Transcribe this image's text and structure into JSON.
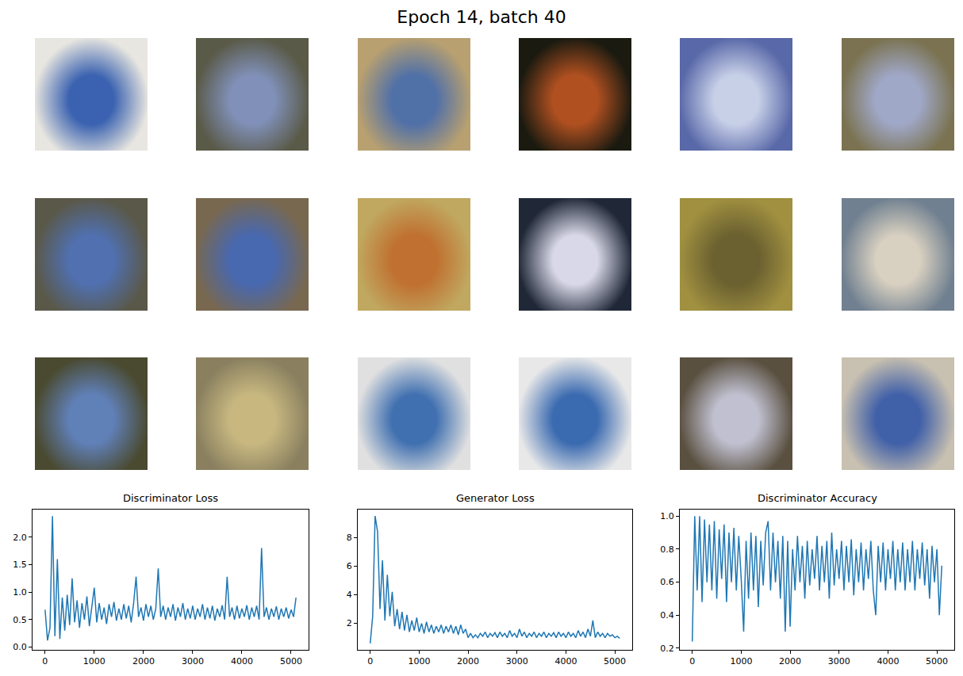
{
  "title": "Epoch 14, batch 40",
  "images": {
    "rows": 3,
    "cols": 6,
    "tiles": [
      {
        "colors": [
          "#e8e6e0",
          "#3a62b0"
        ]
      },
      {
        "colors": [
          "#5a5a48",
          "#8090b8"
        ]
      },
      {
        "colors": [
          "#b8a070",
          "#5070a8"
        ]
      },
      {
        "colors": [
          "#1a1a10",
          "#b05020"
        ]
      },
      {
        "colors": [
          "#5868a8",
          "#c8d0e8"
        ]
      },
      {
        "colors": [
          "#7a7250",
          "#a0a8c8"
        ]
      },
      {
        "colors": [
          "#5a5848",
          "#5070b0"
        ]
      },
      {
        "colors": [
          "#786850",
          "#4868b0"
        ]
      },
      {
        "colors": [
          "#c0a860",
          "#c07030"
        ]
      },
      {
        "colors": [
          "#202838",
          "#d8d8e8"
        ]
      },
      {
        "colors": [
          "#a09040",
          "#6a6030"
        ]
      },
      {
        "colors": [
          "#708090",
          "#d8d0c0"
        ]
      },
      {
        "colors": [
          "#4a4a30",
          "#6080b8"
        ]
      },
      {
        "colors": [
          "#8a8060",
          "#c8b880"
        ]
      },
      {
        "colors": [
          "#e0e0e0",
          "#4070b0"
        ]
      },
      {
        "colors": [
          "#e8e8e8",
          "#3a6ab0"
        ]
      },
      {
        "colors": [
          "#5a5040",
          "#c0c0d0"
        ]
      },
      {
        "colors": [
          "#c8c0b0",
          "#4060a8"
        ]
      }
    ]
  },
  "chart_data": [
    {
      "type": "line",
      "title": "Discriminator Loss",
      "color": "#1f77b4",
      "grid": false,
      "x": [
        0,
        50,
        100,
        150,
        200,
        250,
        300,
        350,
        400,
        450,
        500,
        550,
        600,
        650,
        700,
        750,
        800,
        850,
        900,
        950,
        1000,
        1050,
        1100,
        1150,
        1200,
        1250,
        1300,
        1350,
        1400,
        1450,
        1500,
        1550,
        1600,
        1650,
        1700,
        1750,
        1800,
        1850,
        1900,
        1950,
        2000,
        2050,
        2100,
        2150,
        2200,
        2250,
        2300,
        2350,
        2400,
        2450,
        2500,
        2550,
        2600,
        2650,
        2700,
        2750,
        2800,
        2850,
        2900,
        2950,
        3000,
        3050,
        3100,
        3150,
        3200,
        3250,
        3300,
        3350,
        3400,
        3450,
        3500,
        3550,
        3600,
        3650,
        3700,
        3750,
        3800,
        3850,
        3900,
        3950,
        4000,
        4050,
        4100,
        4150,
        4200,
        4250,
        4300,
        4350,
        4400,
        4450,
        4500,
        4550,
        4600,
        4650,
        4700,
        4750,
        4800,
        4850,
        4900,
        4950,
        5000,
        5050,
        5100
      ],
      "values": [
        0.68,
        0.12,
        0.35,
        2.38,
        0.2,
        1.6,
        0.15,
        0.9,
        0.3,
        0.95,
        0.4,
        1.25,
        0.45,
        0.85,
        0.35,
        0.8,
        0.5,
        0.92,
        0.38,
        0.75,
        1.08,
        0.45,
        0.8,
        0.5,
        0.72,
        0.42,
        0.78,
        0.55,
        0.82,
        0.48,
        0.7,
        0.5,
        0.78,
        0.52,
        0.75,
        0.45,
        0.8,
        1.28,
        0.55,
        0.72,
        0.48,
        0.78,
        0.55,
        0.75,
        0.5,
        0.7,
        1.43,
        0.55,
        0.75,
        0.5,
        0.72,
        0.55,
        0.78,
        0.48,
        0.72,
        0.55,
        0.8,
        0.5,
        0.7,
        0.52,
        0.75,
        0.5,
        0.7,
        0.55,
        0.78,
        0.5,
        0.72,
        0.52,
        0.75,
        0.48,
        0.7,
        0.55,
        0.76,
        0.5,
        1.28,
        0.55,
        0.72,
        0.5,
        0.75,
        0.52,
        0.7,
        0.55,
        0.76,
        0.5,
        0.72,
        0.55,
        0.75,
        0.5,
        1.8,
        0.55,
        0.72,
        0.5,
        0.7,
        0.55,
        0.74,
        0.5,
        0.7,
        0.55,
        0.72,
        0.52,
        0.68,
        0.55,
        0.9
      ],
      "xlim": [
        -255,
        5355
      ],
      "xticks": [
        0,
        1000,
        2000,
        3000,
        4000,
        5000
      ],
      "ylim": [
        -0.05,
        2.5
      ],
      "yticks": [
        {
          "value": 0,
          "label": "0.0"
        },
        0.5,
        {
          "value": 1,
          "label": "1.0"
        },
        1.5,
        {
          "value": 2,
          "label": "2.0"
        }
      ]
    },
    {
      "type": "line",
      "title": "Generator Loss",
      "color": "#1f77b4",
      "grid": false,
      "x": [
        0,
        50,
        100,
        150,
        200,
        250,
        300,
        350,
        400,
        450,
        500,
        550,
        600,
        650,
        700,
        750,
        800,
        850,
        900,
        950,
        1000,
        1050,
        1100,
        1150,
        1200,
        1250,
        1300,
        1350,
        1400,
        1450,
        1500,
        1550,
        1600,
        1650,
        1700,
        1750,
        1800,
        1850,
        1900,
        1950,
        2000,
        2050,
        2100,
        2150,
        2200,
        2250,
        2300,
        2350,
        2400,
        2450,
        2500,
        2550,
        2600,
        2650,
        2700,
        2750,
        2800,
        2850,
        2900,
        2950,
        3000,
        3050,
        3100,
        3150,
        3200,
        3250,
        3300,
        3350,
        3400,
        3450,
        3500,
        3550,
        3600,
        3650,
        3700,
        3750,
        3800,
        3850,
        3900,
        3950,
        4000,
        4050,
        4100,
        4150,
        4200,
        4250,
        4300,
        4350,
        4400,
        4450,
        4500,
        4550,
        4600,
        4650,
        4700,
        4750,
        4800,
        4850,
        4900,
        4950,
        5000,
        5050,
        5100
      ],
      "values": [
        0.6,
        2.5,
        9.5,
        8.4,
        3.0,
        6.4,
        2.2,
        5.4,
        2.5,
        4.2,
        1.8,
        3.0,
        1.6,
        2.8,
        1.5,
        2.6,
        1.4,
        2.2,
        1.5,
        2.4,
        1.4,
        2.0,
        1.3,
        2.1,
        1.4,
        1.9,
        1.3,
        1.8,
        1.4,
        1.9,
        1.3,
        1.8,
        1.4,
        1.9,
        1.3,
        1.8,
        1.2,
        1.9,
        1.3,
        1.6,
        1.0,
        1.3,
        1.0,
        1.2,
        1.0,
        1.3,
        1.1,
        1.4,
        1.0,
        1.3,
        1.1,
        1.35,
        1.0,
        1.4,
        1.1,
        1.3,
        1.0,
        1.5,
        1.1,
        1.3,
        1.0,
        1.6,
        1.1,
        1.4,
        1.0,
        1.3,
        1.1,
        1.4,
        1.0,
        1.3,
        1.1,
        1.4,
        1.0,
        1.3,
        1.1,
        1.35,
        1.0,
        1.4,
        1.1,
        1.3,
        1.0,
        1.4,
        1.1,
        1.3,
        1.0,
        1.5,
        1.1,
        1.4,
        1.0,
        1.6,
        1.1,
        2.2,
        1.0,
        1.4,
        1.1,
        1.3,
        1.0,
        1.3,
        1.1,
        1.2,
        1.0,
        1.1,
        0.95
      ],
      "xlim": [
        -255,
        5355
      ],
      "xticks": [
        0,
        1000,
        2000,
        3000,
        4000,
        5000
      ],
      "ylim": [
        0.15,
        9.95
      ],
      "yticks": [
        2,
        4,
        6,
        8
      ]
    },
    {
      "type": "line",
      "title": "Discriminator Accuracy",
      "color": "#1f77b4",
      "grid": false,
      "x": [
        0,
        50,
        100,
        150,
        200,
        250,
        300,
        350,
        400,
        450,
        500,
        550,
        600,
        650,
        700,
        750,
        800,
        850,
        900,
        950,
        1000,
        1050,
        1100,
        1150,
        1200,
        1250,
        1300,
        1350,
        1400,
        1450,
        1500,
        1550,
        1600,
        1650,
        1700,
        1750,
        1800,
        1850,
        1900,
        1950,
        2000,
        2050,
        2100,
        2150,
        2200,
        2250,
        2300,
        2350,
        2400,
        2450,
        2500,
        2550,
        2600,
        2650,
        2700,
        2750,
        2800,
        2850,
        2900,
        2950,
        3000,
        3050,
        3100,
        3150,
        3200,
        3250,
        3300,
        3350,
        3400,
        3450,
        3500,
        3550,
        3600,
        3650,
        3700,
        3750,
        3800,
        3850,
        3900,
        3950,
        4000,
        4050,
        4100,
        4150,
        4200,
        4250,
        4300,
        4350,
        4400,
        4450,
        4500,
        4550,
        4600,
        4650,
        4700,
        4750,
        4800,
        4850,
        4900,
        4950,
        5000,
        5050,
        5100
      ],
      "values": [
        0.24,
        1.0,
        0.55,
        1.0,
        0.48,
        0.98,
        0.6,
        0.95,
        0.55,
        0.97,
        0.5,
        0.92,
        0.62,
        0.95,
        0.48,
        0.9,
        0.6,
        0.93,
        0.55,
        0.88,
        0.62,
        0.3,
        0.85,
        0.5,
        0.9,
        0.55,
        0.88,
        0.45,
        0.85,
        0.58,
        0.9,
        0.97,
        0.55,
        0.9,
        0.6,
        0.85,
        0.5,
        0.88,
        0.3,
        0.85,
        0.33,
        0.8,
        0.55,
        0.88,
        0.6,
        0.82,
        0.5,
        0.85,
        0.58,
        0.8,
        0.62,
        0.88,
        0.55,
        0.82,
        0.6,
        0.85,
        0.5,
        0.9,
        0.58,
        0.8,
        0.62,
        0.85,
        0.55,
        0.82,
        0.6,
        0.86,
        0.52,
        0.8,
        0.6,
        0.84,
        0.55,
        0.8,
        0.62,
        0.85,
        0.55,
        0.4,
        0.82,
        0.6,
        0.84,
        0.55,
        0.8,
        0.62,
        0.85,
        0.55,
        0.8,
        0.6,
        0.84,
        0.55,
        0.8,
        0.6,
        0.85,
        0.55,
        0.8,
        0.62,
        0.84,
        0.58,
        0.8,
        0.5,
        0.82,
        0.6,
        0.8,
        0.4,
        0.7
      ],
      "xlim": [
        -255,
        5355
      ],
      "xticks": [
        0,
        1000,
        2000,
        3000,
        4000,
        5000
      ],
      "ylim": [
        0.19,
        1.04
      ],
      "yticks": [
        0.2,
        0.4,
        0.6,
        0.8,
        {
          "value": 1,
          "label": "1.0"
        }
      ]
    }
  ]
}
